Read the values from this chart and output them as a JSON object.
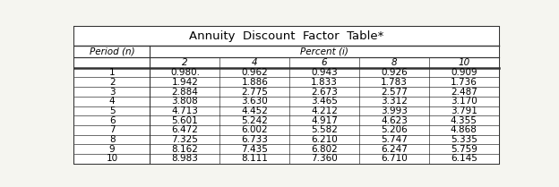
{
  "title": "Annuity  Discount  Factor  Table*",
  "col_header_top": "Percent (i)",
  "col_header_left": "Period (n)",
  "percent_cols": [
    "2",
    "4",
    "6",
    "8",
    "10"
  ],
  "periods": [
    1,
    2,
    3,
    4,
    5,
    6,
    7,
    8,
    9,
    10
  ],
  "values": [
    [
      "0.980.",
      "0.962",
      "0.943",
      "0.926",
      "0.909"
    ],
    [
      "1.942",
      "1.886",
      "1.833",
      "1.783",
      "1.736"
    ],
    [
      "2.884",
      "2.775",
      "2.673",
      "2.577",
      "2.487"
    ],
    [
      "3.808",
      "3.630",
      "3.465",
      "3.312",
      "3.170"
    ],
    [
      "4.713",
      "4.452",
      "4.212",
      "3.993",
      "3.791"
    ],
    [
      "5.601",
      "5.242",
      "4.917",
      "4.623",
      "4.355"
    ],
    [
      "6.472",
      "6.002",
      "5.582",
      "5.206",
      "4.868"
    ],
    [
      "7.325",
      "6.733",
      "6.210",
      "5.747",
      "5.335"
    ],
    [
      "8.162",
      "7.435",
      "6.802",
      "6.247",
      "5.759"
    ],
    [
      "8.983",
      "8.111",
      "7.360",
      "6.710",
      "6.145"
    ]
  ],
  "bg_color": "#f5f5f0",
  "border_color": "#333333",
  "text_color": "#111111"
}
